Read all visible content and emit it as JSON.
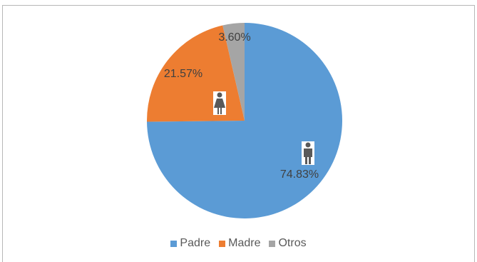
{
  "chart_data": {
    "type": "pie",
    "slices": [
      {
        "name": "Padre",
        "value": 74.83,
        "label": "74.83%",
        "color": "#5b9bd5",
        "icon": "male-person-icon"
      },
      {
        "name": "Madre",
        "value": 21.57,
        "label": "21.57%",
        "color": "#ed7d31",
        "icon": "female-person-icon"
      },
      {
        "name": "Otros",
        "value": 3.6,
        "label": "3.60%",
        "color": "#a5a5a5",
        "icon": ""
      }
    ],
    "start": "12 o'clock",
    "direction": "clockwise",
    "legend_position": "bottom"
  }
}
